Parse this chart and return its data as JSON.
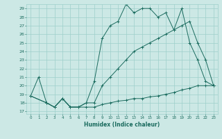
{
  "xlabel": "Humidex (Indice chaleur)",
  "bg_color": "#cce8e5",
  "grid_color": "#9ecfca",
  "line_color": "#1a6b5e",
  "xlim": [
    -0.5,
    23.5
  ],
  "ylim": [
    16.7,
    29.5
  ],
  "xticks": [
    0,
    1,
    2,
    3,
    4,
    5,
    6,
    7,
    8,
    9,
    10,
    11,
    12,
    13,
    14,
    15,
    16,
    17,
    18,
    19,
    20,
    21,
    22,
    23
  ],
  "yticks": [
    17,
    18,
    19,
    20,
    21,
    22,
    23,
    24,
    25,
    26,
    27,
    28,
    29
  ],
  "line1_x": [
    0,
    1,
    2,
    3,
    4,
    5,
    6,
    7,
    8,
    9,
    10,
    11,
    12,
    13,
    14,
    15,
    16,
    17,
    18,
    19,
    20,
    21,
    22,
    23
  ],
  "line1_y": [
    18.8,
    21.0,
    18.0,
    17.5,
    18.5,
    17.5,
    17.5,
    17.5,
    17.5,
    17.8,
    18.0,
    18.2,
    18.3,
    18.5,
    18.5,
    18.7,
    18.8,
    19.0,
    19.2,
    19.5,
    19.7,
    20.0,
    20.0,
    20.0
  ],
  "line2_x": [
    0,
    2,
    3,
    4,
    5,
    6,
    7,
    8,
    9,
    10,
    11,
    12,
    13,
    14,
    15,
    16,
    17,
    18,
    19,
    20,
    21,
    22,
    23
  ],
  "line2_y": [
    18.8,
    18.0,
    17.5,
    18.5,
    17.5,
    17.5,
    18.0,
    20.5,
    25.5,
    27.0,
    27.5,
    29.5,
    28.5,
    29.0,
    29.0,
    28.0,
    28.5,
    26.5,
    29.0,
    25.0,
    23.0,
    20.5,
    20.0
  ],
  "line3_x": [
    0,
    2,
    3,
    4,
    5,
    6,
    7,
    8,
    9,
    10,
    11,
    12,
    13,
    14,
    15,
    16,
    17,
    18,
    19,
    20,
    21,
    22,
    23
  ],
  "line3_y": [
    18.8,
    18.0,
    17.5,
    18.5,
    17.5,
    17.5,
    18.0,
    18.0,
    20.0,
    21.0,
    22.0,
    23.0,
    24.0,
    24.5,
    25.0,
    25.5,
    26.0,
    26.5,
    27.0,
    27.5,
    25.0,
    23.0,
    20.0
  ]
}
